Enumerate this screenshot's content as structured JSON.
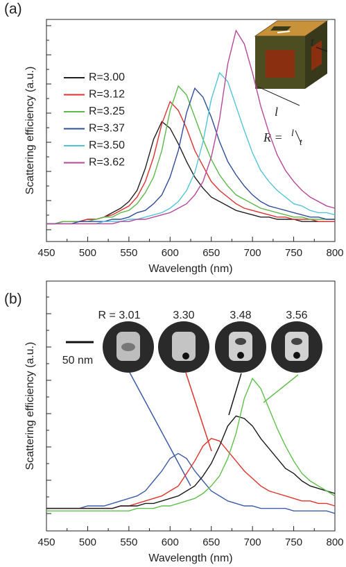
{
  "chart_data": [
    {
      "type": "line",
      "panel_label": "(a)",
      "xlabel": "Wavelength (nm)",
      "ylabel": "Scattering efficiency (a.u.)",
      "xlim": [
        450,
        800
      ],
      "xticks": [
        450,
        500,
        550,
        600,
        650,
        700,
        750,
        800
      ],
      "ylim": [
        0,
        1
      ],
      "legend": true,
      "x": [
        450,
        460,
        470,
        480,
        490,
        500,
        510,
        520,
        530,
        540,
        550,
        560,
        570,
        580,
        590,
        600,
        610,
        620,
        630,
        640,
        650,
        660,
        670,
        680,
        690,
        700,
        710,
        720,
        730,
        740,
        750,
        760,
        770,
        780,
        790,
        800
      ],
      "series": [
        {
          "name": "R=3.00",
          "color": "#231f20",
          "values": [
            0.08,
            0.08,
            0.09,
            0.09,
            0.09,
            0.1,
            0.1,
            0.11,
            0.13,
            0.15,
            0.18,
            0.23,
            0.33,
            0.46,
            0.54,
            0.51,
            0.44,
            0.36,
            0.29,
            0.24,
            0.2,
            0.18,
            0.16,
            0.14,
            0.13,
            0.12,
            0.11,
            0.11,
            0.1,
            0.1,
            0.1,
            0.09,
            0.09,
            0.09,
            0.09,
            0.09
          ]
        },
        {
          "name": "R=3.12",
          "color": "#e0302f",
          "values": [
            0.08,
            0.08,
            0.09,
            0.09,
            0.09,
            0.1,
            0.1,
            0.11,
            0.12,
            0.14,
            0.16,
            0.2,
            0.27,
            0.38,
            0.53,
            0.63,
            0.59,
            0.51,
            0.41,
            0.34,
            0.27,
            0.23,
            0.2,
            0.17,
            0.15,
            0.14,
            0.13,
            0.12,
            0.11,
            0.11,
            0.1,
            0.1,
            0.1,
            0.09,
            0.09,
            0.09
          ]
        },
        {
          "name": "R=3.25",
          "color": "#5cb94a",
          "values": [
            0.08,
            0.08,
            0.09,
            0.09,
            0.09,
            0.09,
            0.1,
            0.11,
            0.11,
            0.13,
            0.14,
            0.17,
            0.22,
            0.29,
            0.41,
            0.59,
            0.7,
            0.66,
            0.56,
            0.46,
            0.37,
            0.3,
            0.25,
            0.21,
            0.19,
            0.17,
            0.15,
            0.14,
            0.13,
            0.12,
            0.11,
            0.11,
            0.1,
            0.1,
            0.1,
            0.1
          ]
        },
        {
          "name": "R=3.37",
          "color": "#2f4d9a",
          "values": [
            0.08,
            0.08,
            0.08,
            0.08,
            0.09,
            0.09,
            0.09,
            0.09,
            0.1,
            0.1,
            0.11,
            0.13,
            0.14,
            0.17,
            0.21,
            0.29,
            0.41,
            0.58,
            0.69,
            0.65,
            0.56,
            0.45,
            0.36,
            0.3,
            0.25,
            0.21,
            0.18,
            0.16,
            0.15,
            0.14,
            0.13,
            0.12,
            0.11,
            0.11,
            0.1,
            0.1
          ]
        },
        {
          "name": "R=3.50",
          "color": "#52c4d8",
          "values": [
            0.08,
            0.08,
            0.08,
            0.08,
            0.08,
            0.08,
            0.08,
            0.09,
            0.09,
            0.09,
            0.1,
            0.1,
            0.11,
            0.12,
            0.13,
            0.15,
            0.18,
            0.23,
            0.31,
            0.45,
            0.64,
            0.76,
            0.72,
            0.61,
            0.5,
            0.4,
            0.32,
            0.27,
            0.23,
            0.2,
            0.17,
            0.16,
            0.14,
            0.13,
            0.13,
            0.12
          ]
        },
        {
          "name": "R=3.62",
          "color": "#b6479b",
          "values": [
            0.08,
            0.08,
            0.08,
            0.08,
            0.08,
            0.08,
            0.08,
            0.08,
            0.08,
            0.09,
            0.09,
            0.1,
            0.1,
            0.11,
            0.12,
            0.13,
            0.15,
            0.17,
            0.21,
            0.27,
            0.38,
            0.55,
            0.8,
            0.95,
            0.89,
            0.76,
            0.61,
            0.49,
            0.39,
            0.32,
            0.27,
            0.23,
            0.2,
            0.18,
            0.16,
            0.15
          ]
        }
      ],
      "inset": {
        "t": "t",
        "l": "l",
        "equation": {
          "lhs": "R =",
          "num": "l",
          "den": "t"
        }
      }
    },
    {
      "type": "line",
      "panel_label": "(b)",
      "xlabel": "Wavelength (nm)",
      "ylabel": "Scattering efficiency (a.u.)",
      "xlim": [
        450,
        800
      ],
      "xticks": [
        450,
        500,
        550,
        600,
        650,
        700,
        750,
        800
      ],
      "ylim": [
        0,
        1
      ],
      "legend": false,
      "x": [
        450,
        460,
        470,
        480,
        490,
        500,
        510,
        520,
        530,
        540,
        550,
        560,
        570,
        580,
        590,
        600,
        610,
        620,
        630,
        640,
        650,
        660,
        670,
        680,
        690,
        700,
        710,
        720,
        730,
        740,
        750,
        760,
        770,
        780,
        790,
        800
      ],
      "series": [
        {
          "name": "R = 3.01",
          "color": "#3c5ba8",
          "values": [
            0.09,
            0.09,
            0.09,
            0.09,
            0.09,
            0.1,
            0.1,
            0.1,
            0.11,
            0.12,
            0.13,
            0.14,
            0.16,
            0.2,
            0.24,
            0.29,
            0.31,
            0.29,
            0.24,
            0.2,
            0.16,
            0.14,
            0.12,
            0.11,
            0.1,
            0.1,
            0.09,
            0.09,
            0.09,
            0.09,
            0.08,
            0.08,
            0.08,
            0.08,
            0.08,
            0.07
          ]
        },
        {
          "name": "3.30",
          "color": "#e2322c",
          "values": [
            0.09,
            0.09,
            0.09,
            0.09,
            0.09,
            0.09,
            0.09,
            0.09,
            0.09,
            0.1,
            0.1,
            0.11,
            0.12,
            0.13,
            0.14,
            0.16,
            0.18,
            0.23,
            0.28,
            0.34,
            0.37,
            0.36,
            0.32,
            0.28,
            0.24,
            0.21,
            0.18,
            0.16,
            0.15,
            0.14,
            0.13,
            0.12,
            0.12,
            0.11,
            0.11,
            0.1
          ]
        },
        {
          "name": "3.48",
          "color": "#1a1a1a",
          "values": [
            0.09,
            0.09,
            0.09,
            0.09,
            0.09,
            0.09,
            0.09,
            0.09,
            0.09,
            0.1,
            0.1,
            0.1,
            0.11,
            0.11,
            0.12,
            0.13,
            0.14,
            0.16,
            0.18,
            0.22,
            0.27,
            0.34,
            0.42,
            0.46,
            0.45,
            0.42,
            0.37,
            0.33,
            0.29,
            0.25,
            0.23,
            0.2,
            0.18,
            0.17,
            0.16,
            0.15
          ]
        },
        {
          "name": "3.56",
          "color": "#5fbf4a",
          "values": [
            0.08,
            0.08,
            0.08,
            0.08,
            0.08,
            0.08,
            0.08,
            0.08,
            0.08,
            0.08,
            0.08,
            0.09,
            0.09,
            0.09,
            0.1,
            0.1,
            0.11,
            0.12,
            0.13,
            0.15,
            0.18,
            0.22,
            0.29,
            0.39,
            0.53,
            0.61,
            0.57,
            0.49,
            0.41,
            0.34,
            0.28,
            0.23,
            0.2,
            0.18,
            0.16,
            0.14
          ]
        }
      ],
      "scale_bar": "50 nm"
    }
  ]
}
